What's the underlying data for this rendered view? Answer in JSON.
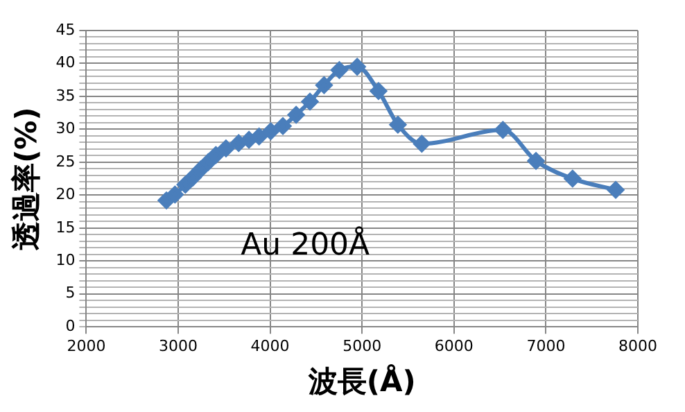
{
  "chart_data": {
    "type": "line",
    "xlabel": "波長(Å)",
    "ylabel": "透過率(%)",
    "annotations": [
      "Au 200Å"
    ],
    "xlim": [
      2000,
      8000
    ],
    "xticks": [
      2000,
      3000,
      4000,
      5000,
      6000,
      7000,
      8000
    ],
    "ylim": [
      0,
      45
    ],
    "yticks": [
      0,
      {
        "value": 1,
        "label": null
      },
      {
        "value": 2,
        "label": null
      },
      {
        "value": 3,
        "label": null
      },
      {
        "value": 4,
        "label": null
      },
      5,
      {
        "value": 6,
        "label": null
      },
      {
        "value": 7,
        "label": null
      },
      {
        "value": 8,
        "label": null
      },
      {
        "value": 9,
        "label": null
      },
      10,
      {
        "value": 11,
        "label": null
      },
      {
        "value": 12,
        "label": null
      },
      {
        "value": 13,
        "label": null
      },
      {
        "value": 14,
        "label": null
      },
      15,
      {
        "value": 16,
        "label": null
      },
      {
        "value": 17,
        "label": null
      },
      {
        "value": 18,
        "label": null
      },
      {
        "value": 19,
        "label": null
      },
      20,
      {
        "value": 21,
        "label": null
      },
      {
        "value": 22,
        "label": null
      },
      {
        "value": 23,
        "label": null
      },
      {
        "value": 24,
        "label": null
      },
      25,
      {
        "value": 26,
        "label": null
      },
      {
        "value": 27,
        "label": null
      },
      {
        "value": 28,
        "label": null
      },
      {
        "value": 29,
        "label": null
      },
      30,
      {
        "value": 31,
        "label": null
      },
      {
        "value": 32,
        "label": null
      },
      {
        "value": 33,
        "label": null
      },
      {
        "value": 34,
        "label": null
      },
      35,
      {
        "value": 36,
        "label": null
      },
      {
        "value": 37,
        "label": null
      },
      {
        "value": 38,
        "label": null
      },
      {
        "value": 39,
        "label": null
      },
      40,
      {
        "value": 41,
        "label": null
      },
      {
        "value": 42,
        "label": null
      },
      {
        "value": 43,
        "label": null
      },
      {
        "value": 44,
        "label": null
      },
      45
    ],
    "grid": true,
    "legend": false,
    "marker": "diamond",
    "line_style": "solid",
    "x": [
      2872,
      2965,
      3078,
      3161,
      3244,
      3327,
      3410,
      3520,
      3658,
      3770,
      3880,
      4007,
      4139,
      4283,
      4433,
      4587,
      4753,
      4947,
      5179,
      5390,
      5650,
      6532,
      6892,
      7290,
      7759
    ],
    "series": [
      {
        "color": "#4a7ebb",
        "values": [
          19.2,
          20.1,
          21.6,
          22.7,
          23.9,
          25.0,
          26.1,
          27.1,
          27.9,
          28.4,
          28.9,
          29.7,
          30.5,
          32.2,
          34.2,
          36.7,
          39.0,
          39.5,
          35.8,
          30.7,
          27.8,
          29.9,
          25.2,
          22.5,
          20.8
        ]
      }
    ]
  }
}
